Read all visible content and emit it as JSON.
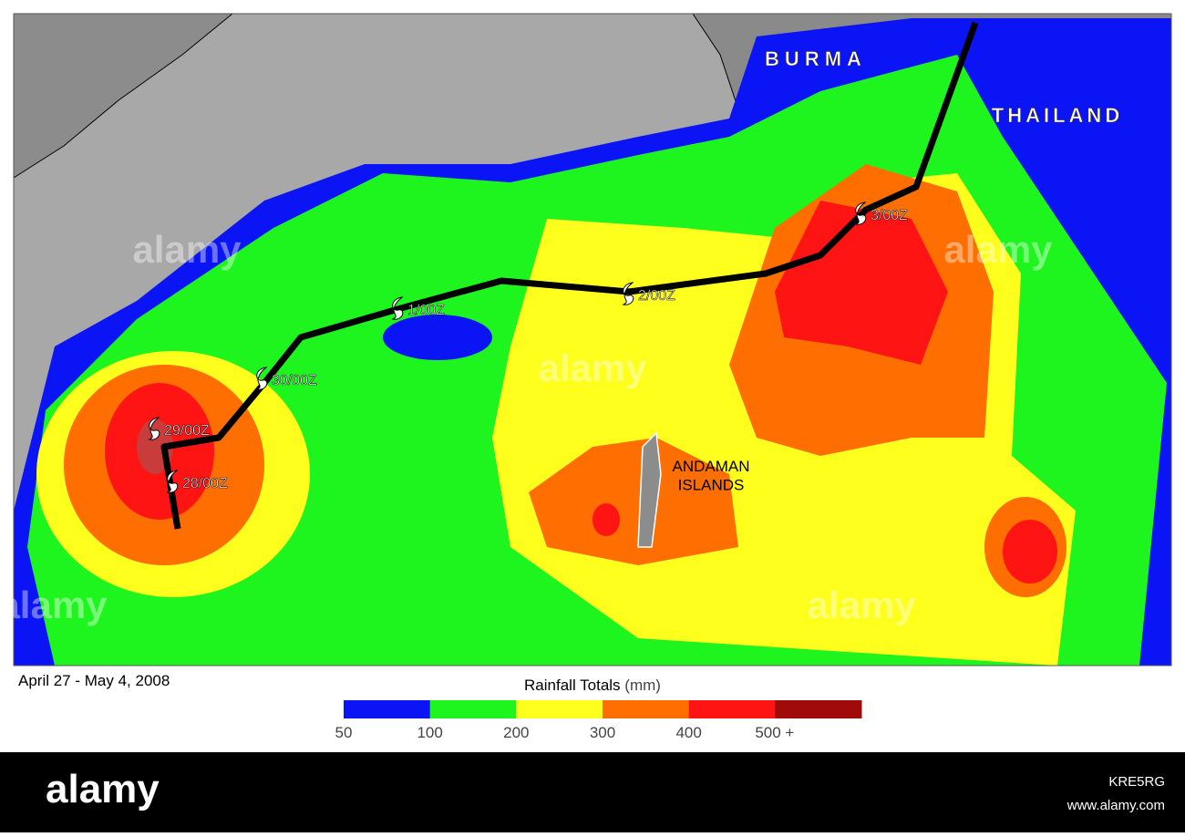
{
  "map": {
    "labels": {
      "burma": "BURMA",
      "thailand": "THAILAND",
      "andaman": "ANDAMAN\nISLANDS"
    },
    "storm_times": [
      "28/00Z",
      "29/00Z",
      "30/00Z",
      "1/00Z",
      "2/00Z",
      "3/00Z"
    ],
    "date_range": "April 27 - May 4,  2008"
  },
  "legend": {
    "title": "Rainfall Totals",
    "unit": "(mm)",
    "ticks": [
      "50",
      "100",
      "200",
      "300",
      "400",
      "500 +"
    ],
    "colors": [
      "#0a14f5",
      "#1ef51e",
      "#ffff1e",
      "#ff6e00",
      "#ff1414",
      "#a00a0a"
    ]
  },
  "watermark": "alamy",
  "footer": {
    "brand": "alamy",
    "image_id": "KRE5RG",
    "url": "www.alamy.com"
  }
}
